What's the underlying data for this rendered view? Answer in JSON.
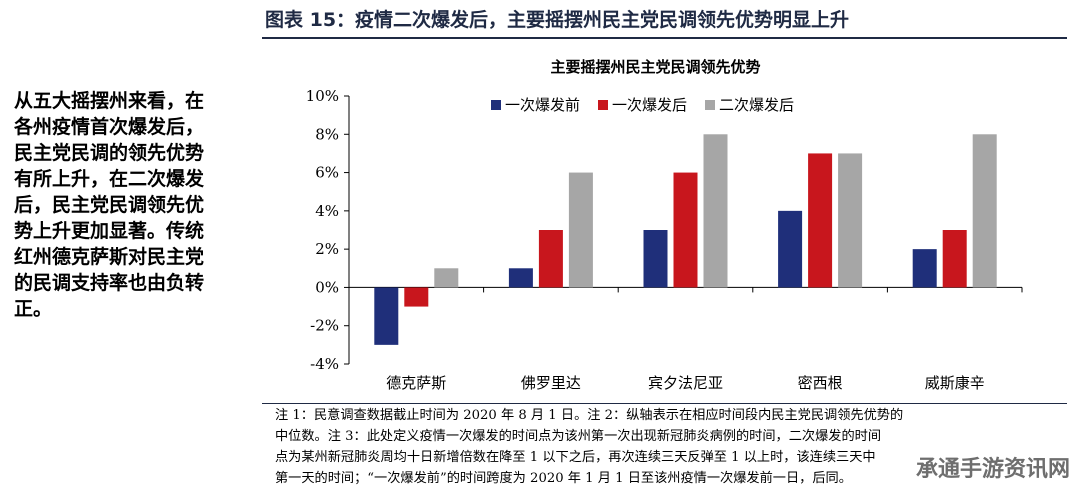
{
  "figure": {
    "title": "图表 15：疫情二次爆发后，主要摇摆州民主党民调领先优势明显上升"
  },
  "side_text": {
    "lines": [
      "从五大摇摆州来看，在",
      "各州疫情首次爆发后，",
      "民主党民调的领先优势",
      "有所上升，在二次爆发",
      "后，民主党民调领先优",
      "势上升更加显著。传统",
      "红州德克萨斯对民主党",
      "的民调支持率也由负转",
      "正。"
    ]
  },
  "chart_data": {
    "type": "bar",
    "title": "主要摇摆州民主党民调领先优势",
    "categories": [
      "德克萨斯",
      "佛罗里达",
      "宾夕法尼亚",
      "密西根",
      "威斯康辛"
    ],
    "series": [
      {
        "name": "一次爆发前",
        "color": "#1f2f7a",
        "values": [
          -3,
          1,
          3,
          4,
          2
        ]
      },
      {
        "name": "一次爆发后",
        "color": "#c8161d",
        "values": [
          -1,
          3,
          6,
          7,
          3
        ]
      },
      {
        "name": "二次爆发后",
        "color": "#a6a6a6",
        "values": [
          1,
          6,
          8,
          7,
          8
        ]
      }
    ],
    "ylim": [
      -4,
      10
    ],
    "yticks": [
      "-4%",
      "-2%",
      "0%",
      "2%",
      "4%",
      "6%",
      "8%",
      "10%"
    ],
    "ytick_values": [
      -4,
      -2,
      0,
      2,
      4,
      6,
      8,
      10
    ],
    "xlabel": "",
    "ylabel": "",
    "grid": false,
    "legend_position": "top-left"
  },
  "notes": {
    "lines": [
      "注 1：民意调查数据截止时间为 2020 年 8 月 1 日。注 2：纵轴表示在相应时间段内民主党民调领先优势的",
      "中位数。注 3：此处定义疫情一次爆发的时间点为该州第一次出现新冠肺炎病例的时间，二次爆发的时间",
      "点为某州新冠肺炎周均十日新增倍数在降至 1 以下之后，再次连续三天反弹至 1 以上时，该连续三天中",
      "第一天的时间；“一次爆发前”的时间跨度为 2020 年 1 月 1 日至该州疫情一次爆发前一日，后同。"
    ]
  },
  "watermark": {
    "text": "承通手游资讯网"
  }
}
